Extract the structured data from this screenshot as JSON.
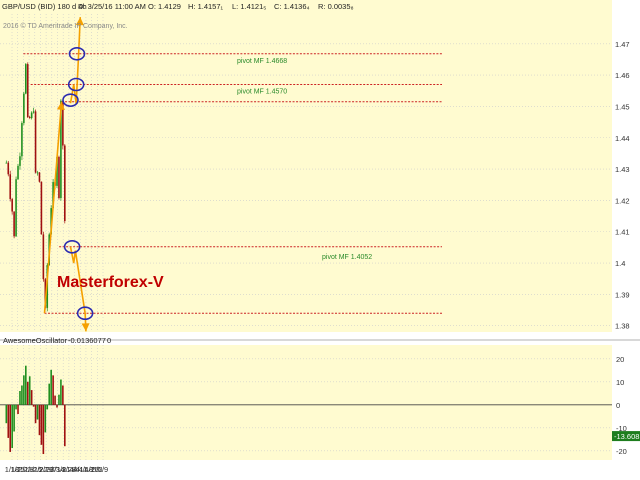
{
  "header": {
    "symbol": "GBP/USD (BID) 180 d 4h",
    "date": "D: 3/25/16 11:00 AM",
    "open": "O: 1.4129",
    "high": "H: 1.4157₁",
    "low": "L: 1.4121₅",
    "close": "C: 1.4136₄",
    "range": "R: 0.0035₈",
    "copyright": "2016 © TD Ameritrade IP Company, Inc."
  },
  "watermark": "Masterforex-V",
  "indicator": {
    "name": "AwesomeOscillator",
    "value": "-0.0136077",
    "param": "0",
    "current_badge": "-13.608"
  },
  "colors": {
    "plot_bg": "#fffbd0",
    "up_candle": "#1f8f1f",
    "down_candle": "#a01010",
    "pivot_line": "#cc2222",
    "projection": "#f5a000",
    "circle": "#2b2bb0",
    "pivot_text": "#2a8a2a",
    "watermark": "#c00000",
    "badge": "#1e7d1e"
  },
  "chart_data": [
    {
      "type": "candlestick",
      "title": "GBP/USD (BID) 180 d 4h",
      "x_tick_labels": [
        "1/18",
        "1/25",
        "2/1",
        "2/8",
        "2/15",
        "2/22",
        "2/29",
        "3/7",
        "3/14",
        "3/21",
        "3/28",
        "4/4",
        "4/11",
        "4/18",
        "4/25",
        "5/2",
        "5/9"
      ],
      "y_tick_labels": [
        "1.47",
        "1.46",
        "1.45",
        "1.44",
        "1.43",
        "1.42",
        "1.41",
        "1.4",
        "1.39",
        "1.38"
      ],
      "ylim": [
        1.378,
        1.4795
      ],
      "price_path": [
        {
          "date": "1/11",
          "price": 1.432
        },
        {
          "date": "1/13",
          "price": 1.43
        },
        {
          "date": "1/15",
          "price": 1.418
        },
        {
          "date": "1/17",
          "price": 1.421
        },
        {
          "date": "1/19",
          "price": 1.413
        },
        {
          "date": "1/21",
          "price": 1.408
        },
        {
          "date": "1/23",
          "price": 1.426
        },
        {
          "date": "1/25",
          "price": 1.432
        },
        {
          "date": "1/27",
          "price": 1.428
        },
        {
          "date": "1/29",
          "price": 1.44
        },
        {
          "date": "1/31",
          "price": 1.446
        },
        {
          "date": "2/2",
          "price": 1.455
        },
        {
          "date": "2/4",
          "price": 1.464
        },
        {
          "date": "2/6",
          "price": 1.449
        },
        {
          "date": "2/8",
          "price": 1.444
        },
        {
          "date": "2/10",
          "price": 1.45
        },
        {
          "date": "2/12",
          "price": 1.448
        },
        {
          "date": "2/14",
          "price": 1.447
        },
        {
          "date": "2/16",
          "price": 1.43
        },
        {
          "date": "2/18",
          "price": 1.428
        },
        {
          "date": "2/20",
          "price": 1.434
        },
        {
          "date": "2/22",
          "price": 1.415
        },
        {
          "date": "2/24",
          "price": 1.405
        },
        {
          "date": "2/26",
          "price": 1.392
        },
        {
          "date": "2/28",
          "price": 1.387
        },
        {
          "date": "3/1",
          "price": 1.398
        },
        {
          "date": "3/3",
          "price": 1.405
        },
        {
          "date": "3/5",
          "price": 1.415
        },
        {
          "date": "3/7",
          "price": 1.418
        },
        {
          "date": "3/9",
          "price": 1.427
        },
        {
          "date": "3/11",
          "price": 1.426
        },
        {
          "date": "3/13",
          "price": 1.437
        },
        {
          "date": "3/15",
          "price": 1.425
        },
        {
          "date": "3/16",
          "price": 1.418
        },
        {
          "date": "3/17",
          "price": 1.437
        },
        {
          "date": "3/18",
          "price": 1.452
        },
        {
          "date": "3/19",
          "price": 1.447
        },
        {
          "date": "3/21",
          "price": 1.436
        },
        {
          "date": "3/22",
          "price": 1.422
        },
        {
          "date": "3/23",
          "price": 1.412
        },
        {
          "date": "3/24",
          "price": 1.407
        },
        {
          "date": "3/25",
          "price": 1.414
        }
      ],
      "pivots": [
        {
          "label": "pivot MF 1.4668",
          "price": 1.4668,
          "from": "2/1"
        },
        {
          "label": "pivot MF 1.4570",
          "price": 1.457,
          "from": "2/10"
        },
        {
          "label": "pivot MF 1.4052",
          "price": 1.4052,
          "from": "3/16"
        },
        {
          "label": "",
          "price": 1.4515,
          "from": "3/19"
        },
        {
          "label": "",
          "price": 1.384,
          "from": "2/27"
        }
      ],
      "projection_lines": [
        {
          "points": [
            {
              "date": "2/27",
              "price": 1.384
            },
            {
              "date": "3/19",
              "price": 1.4515
            }
          ]
        },
        {
          "points": [
            {
              "date": "3/30",
              "price": 1.451
            },
            {
              "date": "4/3",
              "price": 1.457
            },
            {
              "date": "4/6",
              "price": 1.4508
            },
            {
              "date": "4/9",
              "price": 1.4668
            },
            {
              "date": "4/11",
              "price": 1.4785
            }
          ]
        },
        {
          "points": [
            {
              "date": "3/30",
              "price": 1.4052
            },
            {
              "date": "4/3",
              "price": 1.4
            },
            {
              "date": "4/5",
              "price": 1.404
            },
            {
              "date": "4/17",
              "price": 1.384
            },
            {
              "date": "4/18",
              "price": 1.3782
            }
          ]
        }
      ],
      "target_circles": [
        {
          "date": "3/30",
          "price": 1.452
        },
        {
          "date": "4/6",
          "price": 1.457
        },
        {
          "date": "4/7",
          "price": 1.4668
        },
        {
          "date": "4/1",
          "price": 1.4052
        },
        {
          "date": "4/17",
          "price": 1.384
        }
      ]
    },
    {
      "type": "bar",
      "title": "AwesomeOscillator",
      "y_tick_labels": [
        "20",
        "10",
        "0",
        "-10",
        "-20"
      ],
      "ylim": [
        -24,
        26
      ],
      "path": [
        {
          "date": "1/11",
          "value": -8
        },
        {
          "date": "1/14",
          "value": -16
        },
        {
          "date": "1/16",
          "value": -21
        },
        {
          "date": "1/19",
          "value": -18
        },
        {
          "date": "1/21",
          "value": -10
        },
        {
          "date": "1/23",
          "value": -2
        },
        {
          "date": "1/25",
          "value": -6
        },
        {
          "date": "1/27",
          "value": 4
        },
        {
          "date": "1/29",
          "value": 9
        },
        {
          "date": "1/31",
          "value": 8
        },
        {
          "date": "2/2",
          "value": 14
        },
        {
          "date": "2/4",
          "value": 17
        },
        {
          "date": "2/6",
          "value": 9
        },
        {
          "date": "2/8",
          "value": 14
        },
        {
          "date": "2/10",
          "value": 10
        },
        {
          "date": "2/12",
          "value": 4
        },
        {
          "date": "2/14",
          "value": -2
        },
        {
          "date": "2/16",
          "value": -8
        },
        {
          "date": "2/18",
          "value": -5
        },
        {
          "date": "2/20",
          "value": -12
        },
        {
          "date": "2/22",
          "value": -15
        },
        {
          "date": "2/24",
          "value": -19
        },
        {
          "date": "2/26",
          "value": -22
        },
        {
          "date": "2/28",
          "value": -12
        },
        {
          "date": "3/1",
          "value": -4
        },
        {
          "date": "3/3",
          "value": 6
        },
        {
          "date": "3/5",
          "value": 14
        },
        {
          "date": "3/7",
          "value": 16
        },
        {
          "date": "3/9",
          "value": 12
        },
        {
          "date": "3/11",
          "value": 4
        },
        {
          "date": "3/13",
          "value": -2
        },
        {
          "date": "3/15",
          "value": 2
        },
        {
          "date": "3/17",
          "value": 8
        },
        {
          "date": "3/19",
          "value": 13
        },
        {
          "date": "3/20",
          "value": 12
        },
        {
          "date": "3/21",
          "value": 6
        },
        {
          "date": "3/22",
          "value": -5
        },
        {
          "date": "3/23",
          "value": -18
        },
        {
          "date": "3/24",
          "value": -22
        },
        {
          "date": "3/25",
          "value": -13.6
        }
      ]
    }
  ]
}
